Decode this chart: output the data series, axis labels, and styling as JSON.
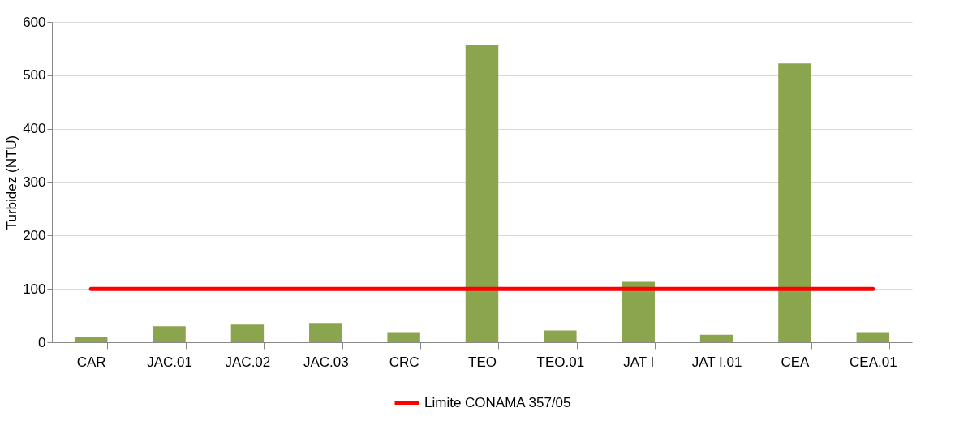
{
  "chart_data": {
    "type": "bar",
    "ylabel": "Turbidez (NTU)",
    "categories": [
      "CAR",
      "JAC.01",
      "JAC.02",
      "JAC.03",
      "CRC",
      "TEO",
      "TEO.01",
      "JAT I",
      "JAT I.01",
      "CEA",
      "CEA.01"
    ],
    "series": [
      {
        "color": "#8ba54e",
        "values": [
          9,
          30,
          33,
          36,
          19,
          556,
          22,
          113,
          14,
          522,
          19
        ]
      },
      {
        "type": "line",
        "name": "Limite CONAMA 357/05",
        "color": "#ff0000",
        "values": [
          100,
          100,
          100,
          100,
          100,
          100,
          100,
          100,
          100,
          100,
          100
        ]
      }
    ],
    "ylim": [
      0,
      600
    ],
    "yticks": [
      0,
      100,
      200,
      300,
      400,
      500,
      600
    ],
    "grid": "y",
    "legend": "bottom"
  }
}
